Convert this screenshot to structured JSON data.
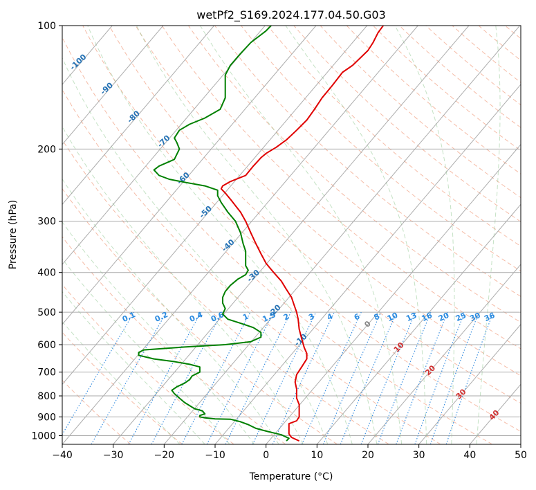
{
  "chart_data": {
    "type": "line",
    "title": "wetPf2_S169.2024.177.04.50.G03",
    "xlabel": "Temperature (°C)",
    "ylabel": "Pressure (hPa)",
    "xlim": [
      -40,
      50
    ],
    "ylim": [
      1050,
      100
    ],
    "y_scale": "log",
    "grid": true,
    "x_ticks": [
      "−40",
      "−30",
      "−20",
      "−10",
      "0",
      "10",
      "20",
      "30",
      "40",
      "50"
    ],
    "x_tick_values": [
      -40,
      -30,
      -20,
      -10,
      0,
      10,
      20,
      30,
      40,
      50
    ],
    "y_ticks": [
      "100",
      "200",
      "300",
      "400",
      "500",
      "600",
      "700",
      "800",
      "900",
      "1000"
    ],
    "y_tick_values": [
      100,
      200,
      300,
      400,
      500,
      600,
      700,
      800,
      900,
      1000
    ],
    "series": [
      {
        "color": "#e00000",
        "points": [
          [
            6.5,
            1030
          ],
          [
            5,
            1010
          ],
          [
            4.5,
            990
          ],
          [
            4.5,
            960
          ],
          [
            4.5,
            935
          ],
          [
            6,
            920
          ],
          [
            6.5,
            900
          ],
          [
            6.5,
            870
          ],
          [
            6.5,
            840
          ],
          [
            6,
            810
          ],
          [
            6,
            770
          ],
          [
            5.7,
            740
          ],
          [
            6,
            710
          ],
          [
            7,
            680
          ],
          [
            8,
            650
          ],
          [
            8,
            630
          ],
          [
            7.5,
            610
          ],
          [
            7,
            580
          ],
          [
            6.5,
            550
          ],
          [
            6.3,
            520
          ],
          [
            6,
            500
          ],
          [
            5.5,
            480
          ],
          [
            5,
            460
          ],
          [
            4,
            440
          ],
          [
            3,
            420
          ],
          [
            1.5,
            400
          ],
          [
            0,
            380
          ],
          [
            -1,
            360
          ],
          [
            -2,
            340
          ],
          [
            -3,
            320
          ],
          [
            -4,
            300
          ],
          [
            -5,
            285
          ],
          [
            -6,
            275
          ],
          [
            -7,
            265
          ],
          [
            -8,
            256
          ],
          [
            -8.8,
            250
          ],
          [
            -8.5,
            246
          ],
          [
            -7,
            240
          ],
          [
            -4,
            232
          ],
          [
            -2.5,
            220
          ],
          [
            -1,
            210
          ],
          [
            0,
            205
          ],
          [
            2,
            198
          ],
          [
            4,
            190
          ],
          [
            6,
            180
          ],
          [
            8,
            170
          ],
          [
            9.5,
            160
          ],
          [
            11,
            150
          ],
          [
            13,
            140
          ],
          [
            15,
            130
          ],
          [
            17,
            125
          ],
          [
            20,
            115
          ],
          [
            21,
            110
          ],
          [
            22,
            104
          ],
          [
            23,
            100
          ]
        ]
      },
      {
        "color": "#008000",
        "points": [
          [
            4,
            1030
          ],
          [
            4.5,
            1015
          ],
          [
            3,
            995
          ],
          [
            0,
            975
          ],
          [
            -2,
            960
          ],
          [
            -3.5,
            940
          ],
          [
            -5,
            925
          ],
          [
            -7,
            912
          ],
          [
            -10,
            910
          ],
          [
            -12,
            905
          ],
          [
            -13,
            900
          ],
          [
            -13,
            893
          ],
          [
            -12,
            885
          ],
          [
            -12.5,
            870
          ],
          [
            -14,
            860
          ],
          [
            -15,
            845
          ],
          [
            -16,
            830
          ],
          [
            -17,
            810
          ],
          [
            -18,
            790
          ],
          [
            -18.5,
            775
          ],
          [
            -17.5,
            760
          ],
          [
            -16,
            745
          ],
          [
            -15,
            730
          ],
          [
            -14.5,
            715
          ],
          [
            -13,
            700
          ],
          [
            -13,
            690
          ],
          [
            -13,
            680
          ],
          [
            -15,
            670
          ],
          [
            -18,
            660
          ],
          [
            -22,
            650
          ],
          [
            -25,
            637
          ],
          [
            -25,
            627
          ],
          [
            -24,
            618
          ],
          [
            -16,
            608
          ],
          [
            -8,
            600
          ],
          [
            -3,
            590
          ],
          [
            -1,
            575
          ],
          [
            -1,
            560
          ],
          [
            -2.5,
            545
          ],
          [
            -5,
            532
          ],
          [
            -7.5,
            520
          ],
          [
            -8.5,
            505
          ],
          [
            -8,
            490
          ],
          [
            -8.5,
            475
          ],
          [
            -8.5,
            460
          ],
          [
            -8,
            445
          ],
          [
            -7,
            430
          ],
          [
            -5.5,
            415
          ],
          [
            -4,
            405
          ],
          [
            -3.5,
            395
          ],
          [
            -4,
            385
          ],
          [
            -4,
            370
          ],
          [
            -4,
            355
          ],
          [
            -4.5,
            340
          ],
          [
            -5,
            320
          ],
          [
            -6,
            300
          ],
          [
            -7.5,
            285
          ],
          [
            -8.8,
            270
          ],
          [
            -9.5,
            260
          ],
          [
            -9.5,
            252
          ],
          [
            -12,
            246
          ],
          [
            -16,
            241
          ],
          [
            -19,
            237
          ],
          [
            -21,
            232
          ],
          [
            -22,
            225
          ],
          [
            -21,
            220
          ],
          [
            -18,
            212
          ],
          [
            -17,
            200
          ],
          [
            -17.5,
            193
          ],
          [
            -18,
            188
          ],
          [
            -17,
            180
          ],
          [
            -15,
            174
          ],
          [
            -12,
            168
          ],
          [
            -9,
            160
          ],
          [
            -8,
            150
          ],
          [
            -8,
            140
          ],
          [
            -8,
            132
          ],
          [
            -7,
            125
          ],
          [
            -5,
            117
          ],
          [
            -3,
            110
          ],
          [
            0,
            103
          ],
          [
            1,
            100
          ]
        ]
      }
    ],
    "mixing_ratio_labels": [
      "0.1",
      "0.2",
      "0.4",
      "0.6",
      "1",
      "1.5",
      "2",
      "3",
      "4",
      "6",
      "8",
      "10",
      "13",
      "16",
      "20",
      "25",
      "30",
      "36"
    ],
    "mixing_ratio_values": [
      0.1,
      0.2,
      0.4,
      0.6,
      1,
      1.5,
      2,
      3,
      4,
      6,
      8,
      10,
      13,
      16,
      20,
      25,
      30,
      36
    ],
    "moist_adiabat_labels": [
      "-100",
      "-90",
      "-80",
      "-70",
      "-60",
      "-50",
      "-40",
      "-30",
      "-20",
      "-10"
    ],
    "moist_adiabat_values": [
      -100,
      -90,
      -80,
      -70,
      -60,
      -50,
      -40,
      -30,
      -20,
      -10
    ],
    "dry_adiabat_labels": [
      "0",
      "10",
      "20",
      "30",
      "40"
    ],
    "dry_adiabat_values": [
      0,
      10,
      20,
      30,
      40
    ]
  }
}
